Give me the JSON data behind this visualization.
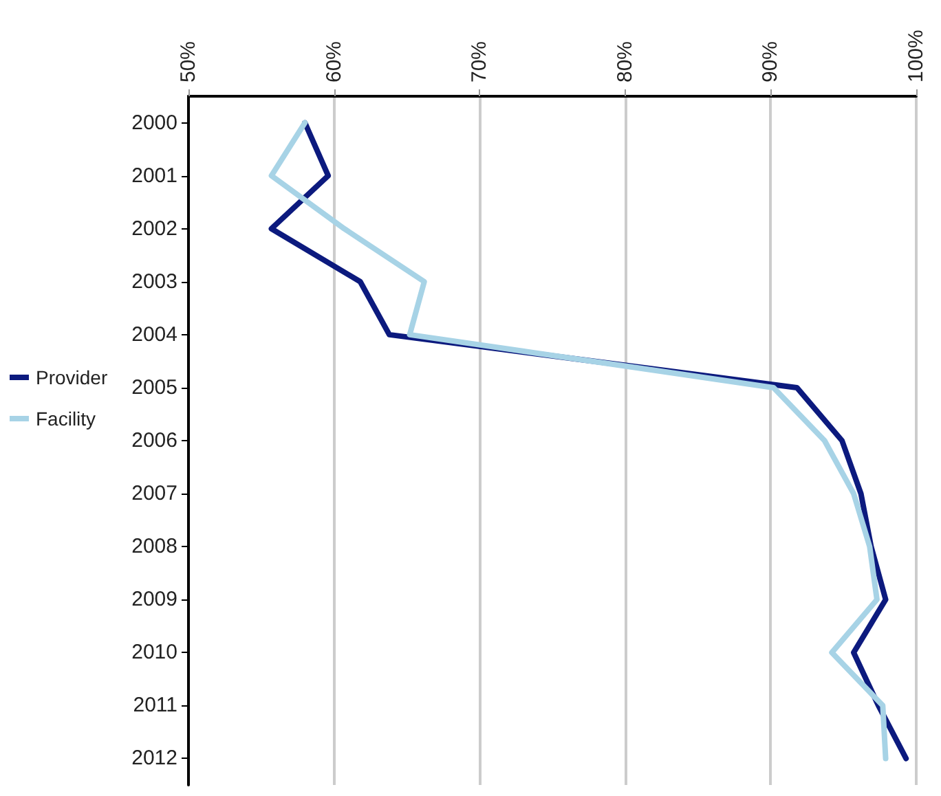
{
  "chart_data": {
    "type": "line",
    "orientation": "horizontal",
    "categories": [
      "2000",
      "2001",
      "2002",
      "2003",
      "2004",
      "2005",
      "2006",
      "2007",
      "2008",
      "2009",
      "2010",
      "2011",
      "2012"
    ],
    "series": [
      {
        "name": "Provider",
        "color": "#0c1a7e",
        "values": [
          58.0,
          59.6,
          55.7,
          61.8,
          63.8,
          91.8,
          94.9,
          96.2,
          96.9,
          97.9,
          95.7,
          97.4,
          99.3
        ]
      },
      {
        "name": "Facility",
        "color": "#a7d3e6",
        "values": [
          58.0,
          55.7,
          60.7,
          66.2,
          65.2,
          90.2,
          93.7,
          95.7,
          96.8,
          97.3,
          94.2,
          97.7,
          97.9
        ]
      }
    ],
    "xlim": [
      50,
      100
    ],
    "xticks": [
      {
        "value": 50,
        "label": "50%"
      },
      {
        "value": 60,
        "label": "60%"
      },
      {
        "value": 70,
        "label": "70%"
      },
      {
        "value": 80,
        "label": "80%"
      },
      {
        "value": 90,
        "label": "90%"
      },
      {
        "value": 100,
        "label": "100%"
      }
    ],
    "grid": "x",
    "legend": "left",
    "marker": "none",
    "line_style": "solid"
  }
}
